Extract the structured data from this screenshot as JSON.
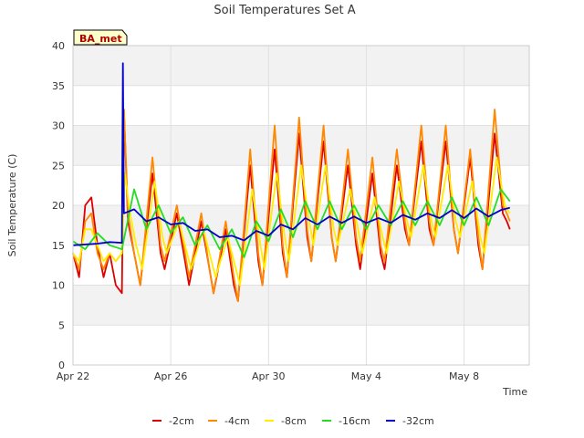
{
  "chart_data": {
    "type": "line",
    "title": "Soil Temperatures Set A",
    "xlabel": "Time",
    "ylabel": "Soil Temperature (C)",
    "badge": "BA_met",
    "ylim": [
      0,
      40
    ],
    "yticks": [
      0,
      5,
      10,
      15,
      20,
      25,
      30,
      35,
      40
    ],
    "xlim": [
      "2024-04-22",
      "2024-05-10"
    ],
    "xticks": [
      {
        "date": "2024-04-22",
        "label": "Apr 22"
      },
      {
        "date": "2024-04-26",
        "label": "Apr 26"
      },
      {
        "date": "2024-04-30",
        "label": "Apr 30"
      },
      {
        "date": "2024-05-04",
        "label": "May 4"
      },
      {
        "date": "2024-05-08",
        "label": "May 8"
      }
    ],
    "grid": true,
    "legend_position": "bottom",
    "series": [
      {
        "name": "-2cm",
        "color": "#dd0000",
        "x": [
          "2024-04-22 00:00",
          "2024-04-22 06:00",
          "2024-04-22 12:00",
          "2024-04-22 18:00",
          "2024-04-23 00:00",
          "2024-04-23 06:00",
          "2024-04-23 12:00",
          "2024-04-23 18:00",
          "2024-04-24 00:00",
          "2024-04-24 02:00",
          "2024-04-24 06:00",
          "2024-04-24 12:00",
          "2024-04-24 18:00",
          "2024-04-25 06:00",
          "2024-04-25 14:00",
          "2024-04-25 18:00",
          "2024-04-26 06:00",
          "2024-04-26 14:00",
          "2024-04-26 18:00",
          "2024-04-27 06:00",
          "2024-04-27 14:00",
          "2024-04-27 18:00",
          "2024-04-28 06:00",
          "2024-04-28 14:00",
          "2024-04-28 18:00",
          "2024-04-29 06:00",
          "2024-04-29 14:00",
          "2024-04-29 18:00",
          "2024-04-30 06:00",
          "2024-04-30 14:00",
          "2024-04-30 18:00",
          "2024-05-01 06:00",
          "2024-05-01 14:00",
          "2024-05-01 18:00",
          "2024-05-02 06:00",
          "2024-05-02 14:00",
          "2024-05-02 18:00",
          "2024-05-03 06:00",
          "2024-05-03 14:00",
          "2024-05-03 18:00",
          "2024-05-04 06:00",
          "2024-05-04 14:00",
          "2024-05-04 18:00",
          "2024-05-05 06:00",
          "2024-05-05 14:00",
          "2024-05-05 18:00",
          "2024-05-06 06:00",
          "2024-05-06 14:00",
          "2024-05-06 18:00",
          "2024-05-07 06:00",
          "2024-05-07 14:00",
          "2024-05-07 18:00",
          "2024-05-08 06:00",
          "2024-05-08 14:00",
          "2024-05-08 18:00",
          "2024-05-09 06:00",
          "2024-05-09 14:00",
          "2024-05-09 18:00",
          "2024-05-09 21:00"
        ],
        "values": [
          14,
          11,
          20,
          21,
          15,
          11,
          14,
          10,
          9,
          32,
          18,
          14,
          10,
          24,
          14,
          12,
          19,
          13,
          10,
          18,
          12,
          9,
          17,
          10,
          8,
          25,
          13,
          10,
          27,
          14,
          11,
          29,
          16,
          13,
          28,
          16,
          13,
          25,
          15,
          12,
          24,
          14,
          12,
          25,
          17,
          15,
          28,
          17,
          15,
          28,
          17,
          14,
          26,
          15,
          12,
          29,
          19,
          18,
          17
        ]
      },
      {
        "name": "-4cm",
        "color": "#ff8800",
        "x": [
          "2024-04-22 00:00",
          "2024-04-22 06:00",
          "2024-04-22 12:00",
          "2024-04-22 18:00",
          "2024-04-23 00:00",
          "2024-04-23 06:00",
          "2024-04-23 12:00",
          "2024-04-23 18:00",
          "2024-04-24 00:00",
          "2024-04-24 02:00",
          "2024-04-24 06:00",
          "2024-04-24 12:00",
          "2024-04-24 18:00",
          "2024-04-25 06:00",
          "2024-04-25 14:00",
          "2024-04-25 18:00",
          "2024-04-26 06:00",
          "2024-04-26 14:00",
          "2024-04-26 18:00",
          "2024-04-27 06:00",
          "2024-04-27 14:00",
          "2024-04-27 18:00",
          "2024-04-28 06:00",
          "2024-04-28 14:00",
          "2024-04-28 18:00",
          "2024-04-29 06:00",
          "2024-04-29 14:00",
          "2024-04-29 18:00",
          "2024-04-30 06:00",
          "2024-04-30 14:00",
          "2024-04-30 18:00",
          "2024-05-01 06:00",
          "2024-05-01 14:00",
          "2024-05-01 18:00",
          "2024-05-02 06:00",
          "2024-05-02 14:00",
          "2024-05-02 18:00",
          "2024-05-03 06:00",
          "2024-05-03 14:00",
          "2024-05-03 18:00",
          "2024-05-04 06:00",
          "2024-05-04 14:00",
          "2024-05-04 18:00",
          "2024-05-05 06:00",
          "2024-05-05 14:00",
          "2024-05-05 18:00",
          "2024-05-06 06:00",
          "2024-05-06 14:00",
          "2024-05-06 18:00",
          "2024-05-07 06:00",
          "2024-05-07 14:00",
          "2024-05-07 18:00",
          "2024-05-08 06:00",
          "2024-05-08 14:00",
          "2024-05-08 18:00",
          "2024-05-09 06:00",
          "2024-05-09 14:00",
          "2024-05-09 18:00",
          "2024-05-09 21:00"
        ],
        "values": [
          14,
          12,
          18,
          19,
          14,
          12,
          14,
          13,
          14,
          32,
          19,
          14,
          10,
          26,
          15,
          13,
          20,
          14,
          11,
          19,
          12,
          9,
          18,
          11,
          8,
          27,
          14,
          10,
          30,
          15,
          11,
          31,
          17,
          13,
          30,
          16,
          13,
          27,
          16,
          13,
          26,
          15,
          13,
          27,
          18,
          15,
          30,
          18,
          15,
          30,
          17,
          14,
          27,
          16,
          12,
          32,
          20,
          19,
          18
        ]
      },
      {
        "name": "-8cm",
        "color": "#ffee00",
        "x": [
          "2024-04-22 00:00",
          "2024-04-22 06:00",
          "2024-04-22 12:00",
          "2024-04-22 18:00",
          "2024-04-23 00:00",
          "2024-04-23 06:00",
          "2024-04-23 12:00",
          "2024-04-23 18:00",
          "2024-04-24 00:00",
          "2024-04-24 03:00",
          "2024-04-24 08:00",
          "2024-04-24 14:00",
          "2024-04-24 20:00",
          "2024-04-25 08:00",
          "2024-04-25 16:00",
          "2024-04-25 20:00",
          "2024-04-26 08:00",
          "2024-04-26 16:00",
          "2024-04-26 20:00",
          "2024-04-27 08:00",
          "2024-04-27 16:00",
          "2024-04-27 20:00",
          "2024-04-28 08:00",
          "2024-04-28 16:00",
          "2024-04-28 20:00",
          "2024-04-29 08:00",
          "2024-04-29 16:00",
          "2024-04-29 20:00",
          "2024-04-30 08:00",
          "2024-04-30 16:00",
          "2024-04-30 20:00",
          "2024-05-01 08:00",
          "2024-05-01 16:00",
          "2024-05-01 20:00",
          "2024-05-02 08:00",
          "2024-05-02 16:00",
          "2024-05-02 20:00",
          "2024-05-03 08:00",
          "2024-05-03 16:00",
          "2024-05-03 20:00",
          "2024-05-04 08:00",
          "2024-05-04 16:00",
          "2024-05-04 20:00",
          "2024-05-05 08:00",
          "2024-05-05 16:00",
          "2024-05-05 20:00",
          "2024-05-06 08:00",
          "2024-05-06 16:00",
          "2024-05-06 20:00",
          "2024-05-07 08:00",
          "2024-05-07 16:00",
          "2024-05-07 20:00",
          "2024-05-08 08:00",
          "2024-05-08 16:00",
          "2024-05-08 20:00",
          "2024-05-09 08:00",
          "2024-05-09 16:00",
          "2024-05-09 21:00"
        ],
        "values": [
          14,
          13,
          17,
          17,
          15,
          13,
          14,
          13,
          14,
          24,
          19,
          15,
          12,
          23,
          16,
          14,
          18,
          14,
          12,
          17,
          13,
          11,
          16,
          12,
          10,
          22,
          15,
          12,
          24,
          16,
          13,
          25,
          18,
          15,
          25,
          17,
          15,
          22,
          17,
          14,
          21,
          16,
          14,
          23,
          18,
          16,
          25,
          18,
          16,
          25,
          18,
          16,
          23,
          16,
          14,
          26,
          20,
          19
        ]
      },
      {
        "name": "-16cm",
        "color": "#22dd22",
        "x": [
          "2024-04-22 00:00",
          "2024-04-22 12:00",
          "2024-04-23 00:00",
          "2024-04-23 12:00",
          "2024-04-24 00:00",
          "2024-04-24 12:00",
          "2024-04-25 00:00",
          "2024-04-25 12:00",
          "2024-04-26 00:00",
          "2024-04-26 12:00",
          "2024-04-27 00:00",
          "2024-04-27 12:00",
          "2024-04-28 00:00",
          "2024-04-28 12:00",
          "2024-04-29 00:00",
          "2024-04-29 12:00",
          "2024-04-30 00:00",
          "2024-04-30 12:00",
          "2024-05-01 00:00",
          "2024-05-01 12:00",
          "2024-05-02 00:00",
          "2024-05-02 12:00",
          "2024-05-03 00:00",
          "2024-05-03 12:00",
          "2024-05-04 00:00",
          "2024-05-04 12:00",
          "2024-05-05 00:00",
          "2024-05-05 12:00",
          "2024-05-06 00:00",
          "2024-05-06 12:00",
          "2024-05-07 00:00",
          "2024-05-07 12:00",
          "2024-05-08 00:00",
          "2024-05-08 12:00",
          "2024-05-09 00:00",
          "2024-05-09 12:00",
          "2024-05-09 21:00"
        ],
        "values": [
          15.5,
          14.5,
          16.5,
          15,
          14.5,
          22,
          17,
          20,
          16.5,
          18.5,
          15,
          17.5,
          14.5,
          17,
          13.5,
          18,
          15.5,
          19.5,
          16,
          20.5,
          17,
          20.5,
          17,
          20,
          17,
          20,
          17.5,
          20.5,
          17.5,
          20.5,
          17.5,
          21,
          17.5,
          21,
          17.5,
          22,
          20.5
        ]
      },
      {
        "name": "-32cm",
        "color": "#0000cc",
        "x": [
          "2024-04-22 00:00",
          "2024-04-23 00:00",
          "2024-04-23 12:00",
          "2024-04-24 00:00",
          "2024-04-24 01:00",
          "2024-04-24 02:00",
          "2024-04-24 12:00",
          "2024-04-25 00:00",
          "2024-04-25 12:00",
          "2024-04-26 00:00",
          "2024-04-26 12:00",
          "2024-04-27 00:00",
          "2024-04-27 12:00",
          "2024-04-28 00:00",
          "2024-04-28 12:00",
          "2024-04-29 00:00",
          "2024-04-29 12:00",
          "2024-04-30 00:00",
          "2024-04-30 12:00",
          "2024-05-01 00:00",
          "2024-05-01 12:00",
          "2024-05-02 00:00",
          "2024-05-02 12:00",
          "2024-05-03 00:00",
          "2024-05-03 12:00",
          "2024-05-04 00:00",
          "2024-05-04 12:00",
          "2024-05-05 00:00",
          "2024-05-05 12:00",
          "2024-05-06 00:00",
          "2024-05-06 12:00",
          "2024-05-07 00:00",
          "2024-05-07 12:00",
          "2024-05-08 00:00",
          "2024-05-08 12:00",
          "2024-05-09 00:00",
          "2024-05-09 12:00",
          "2024-05-09 21:00"
        ],
        "values": [
          15,
          15.2,
          15.4,
          15.3,
          37.8,
          19,
          19.5,
          18,
          18.5,
          17.6,
          17.8,
          16.8,
          17,
          16,
          16.2,
          15.6,
          16.8,
          16.2,
          17.6,
          17,
          18.4,
          17.6,
          18.6,
          17.8,
          18.6,
          17.8,
          18.4,
          17.8,
          18.8,
          18.2,
          19,
          18.4,
          19.4,
          18.4,
          19.6,
          18.6,
          19.4,
          19.7
        ]
      }
    ]
  }
}
